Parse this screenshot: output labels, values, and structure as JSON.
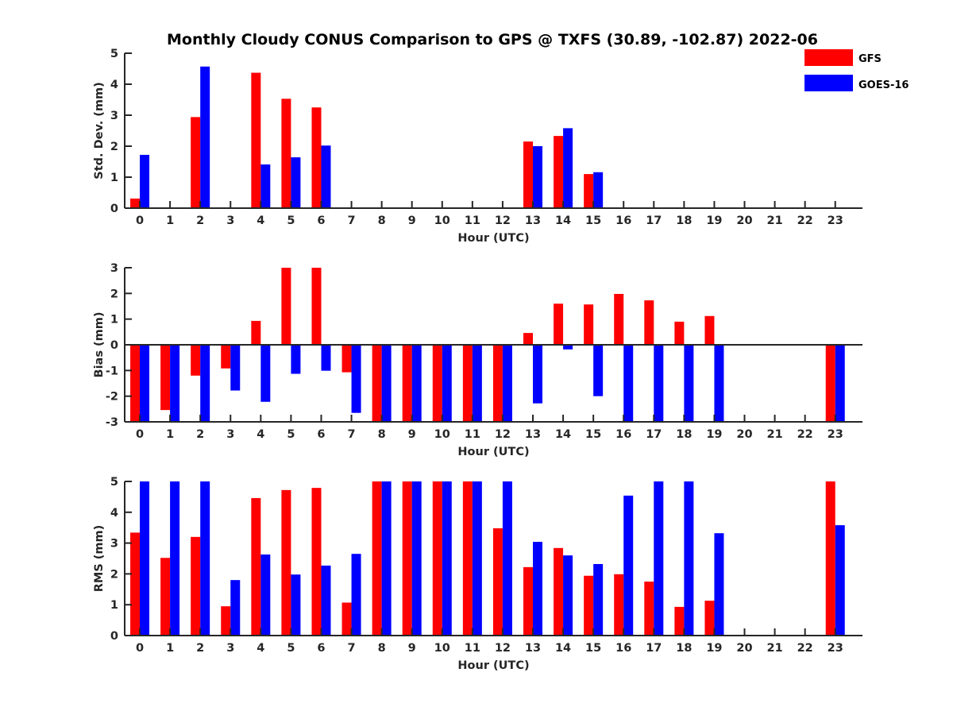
{
  "chart_data": {
    "type": "bar",
    "title": "Monthly Cloudy CONUS Comparison to GPS @ TXFS (30.89, -102.87) 2022-06",
    "legend": {
      "placement": "top-right",
      "entries": [
        {
          "name": "GFS",
          "color": "#ff0000"
        },
        {
          "name": "GOES-16",
          "color": "#0000ff"
        }
      ]
    },
    "categories": [
      "0",
      "1",
      "2",
      "3",
      "4",
      "5",
      "6",
      "7",
      "8",
      "9",
      "10",
      "11",
      "12",
      "13",
      "14",
      "15",
      "16",
      "17",
      "18",
      "19",
      "20",
      "21",
      "22",
      "23"
    ],
    "xlim": [
      -0.5,
      23.9
    ],
    "grid": false,
    "subplots": [
      {
        "id": "stddev",
        "xlabel": "Hour (UTC)",
        "ylabel": "Std. Dev. (mm)",
        "ylim": [
          0,
          5
        ],
        "yticks": [
          0,
          1,
          2,
          3,
          4,
          5
        ],
        "series": [
          {
            "name": "GFS",
            "values": [
              0.31,
              null,
              2.94,
              null,
              4.37,
              3.53,
              3.25,
              null,
              null,
              null,
              null,
              null,
              null,
              2.15,
              2.33,
              1.1,
              null,
              null,
              null,
              null,
              null,
              null,
              null,
              null
            ]
          },
          {
            "name": "GOES-16",
            "values": [
              1.72,
              null,
              4.57,
              null,
              1.41,
              1.64,
              2.02,
              null,
              null,
              null,
              null,
              null,
              null,
              2.0,
              2.58,
              1.16,
              null,
              null,
              null,
              null,
              null,
              null,
              null,
              null
            ]
          }
        ]
      },
      {
        "id": "bias",
        "xlabel": "Hour (UTC)",
        "ylabel": "Bias (mm)",
        "ylim": [
          -3,
          3
        ],
        "yticks": [
          -3,
          -2,
          -1,
          0,
          1,
          2,
          3
        ],
        "series": [
          {
            "name": "GFS",
            "values": [
              -3,
              -2.54,
              -1.2,
              -0.92,
              0.93,
              3,
              3,
              -1.07,
              -3,
              -3,
              -3,
              -3,
              -3,
              0.46,
              1.6,
              1.57,
              1.98,
              1.73,
              0.9,
              1.12,
              null,
              null,
              null,
              -3
            ]
          },
          {
            "name": "GOES-16",
            "values": [
              -3,
              -3,
              -3,
              -1.78,
              -2.22,
              -1.13,
              -1.01,
              -2.65,
              -3,
              -3,
              -3,
              -3,
              -3,
              -2.28,
              -0.18,
              -2.0,
              -3,
              -3,
              -3,
              -3,
              null,
              null,
              null,
              -3
            ]
          }
        ]
      },
      {
        "id": "rms",
        "xlabel": "Hour (UTC)",
        "ylabel": "RMS (mm)",
        "ylim": [
          0,
          5
        ],
        "yticks": [
          0,
          1,
          2,
          3,
          4,
          5
        ],
        "series": [
          {
            "name": "GFS",
            "values": [
              3.34,
              2.52,
              3.2,
              0.95,
              4.46,
              4.72,
              4.79,
              1.07,
              5,
              5,
              5,
              5,
              3.48,
              2.22,
              2.84,
              1.94,
              1.99,
              1.75,
              0.93,
              1.13,
              null,
              null,
              null,
              5
            ]
          },
          {
            "name": "GOES-16",
            "values": [
              5,
              5,
              5,
              1.8,
              2.63,
              1.98,
              2.27,
              2.65,
              5,
              5,
              5,
              5,
              5,
              3.04,
              2.6,
              2.32,
              4.54,
              5,
              5,
              3.32,
              null,
              null,
              null,
              3.58
            ]
          }
        ]
      }
    ]
  }
}
